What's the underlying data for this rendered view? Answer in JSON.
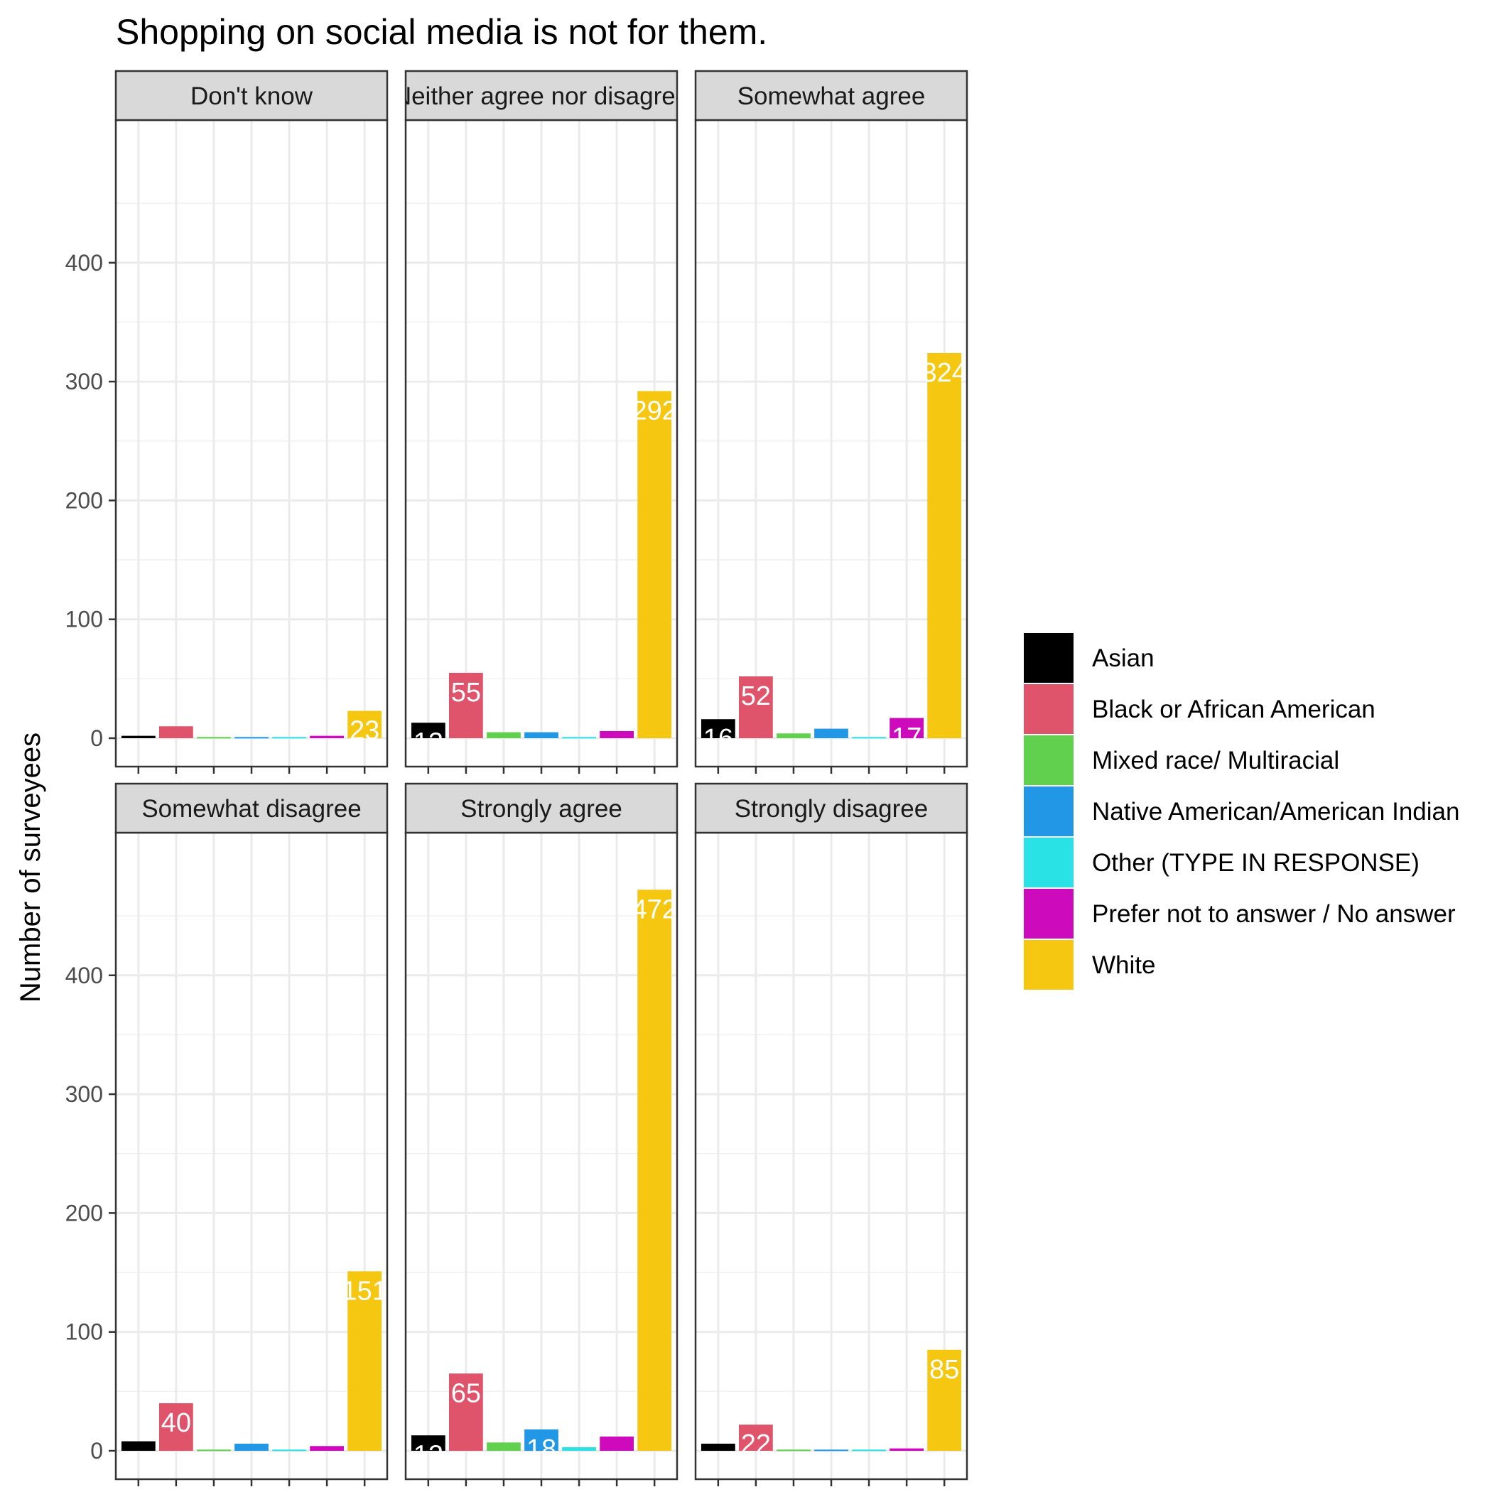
{
  "chart_data": {
    "type": "bar",
    "title": "Shopping on social media is not for them.",
    "ylabel": "Number of surveyees",
    "xlabel": "",
    "ylim": [
      0,
      500
    ],
    "yticks": [
      0,
      100,
      200,
      300,
      400
    ],
    "grid": true,
    "legend_position": "right",
    "categories": [
      "Asian",
      "Black or African American",
      "Mixed race/ Multiracial",
      "Native American/American Indian",
      "Other (TYPE IN RESPONSE)",
      "Prefer not to answer / No answer",
      "White"
    ],
    "colors": [
      "#000000",
      "#DF536B",
      "#61D04F",
      "#2297E6",
      "#28E2E5",
      "#CD0BBC",
      "#F5C710"
    ],
    "panels": [
      {
        "name": "Don't know",
        "values": [
          2,
          10,
          1,
          1,
          1,
          2,
          23
        ],
        "labels": [
          "",
          "",
          "",
          "",
          "",
          "",
          "23"
        ]
      },
      {
        "name": "Neither agree nor disagree",
        "values": [
          13,
          55,
          5,
          5,
          1,
          6,
          292
        ],
        "labels": [
          "13",
          "55",
          "",
          "",
          "",
          "",
          "292"
        ]
      },
      {
        "name": "Somewhat agree",
        "values": [
          16,
          52,
          4,
          8,
          1,
          17,
          324
        ],
        "labels": [
          "16",
          "52",
          "",
          "",
          "",
          "17",
          "324"
        ]
      },
      {
        "name": "Somewhat disagree",
        "values": [
          8,
          40,
          1,
          6,
          1,
          4,
          151
        ],
        "labels": [
          "",
          "40",
          "",
          "",
          "",
          "",
          "151"
        ]
      },
      {
        "name": "Strongly agree",
        "values": [
          13,
          65,
          7,
          18,
          3,
          12,
          472
        ],
        "labels": [
          "13",
          "65",
          "",
          "18",
          "",
          "",
          "472"
        ]
      },
      {
        "name": "Strongly disagree",
        "values": [
          6,
          22,
          1,
          1,
          1,
          2,
          85
        ],
        "labels": [
          "",
          "22",
          "",
          "",
          "",
          "",
          "85"
        ]
      }
    ]
  }
}
